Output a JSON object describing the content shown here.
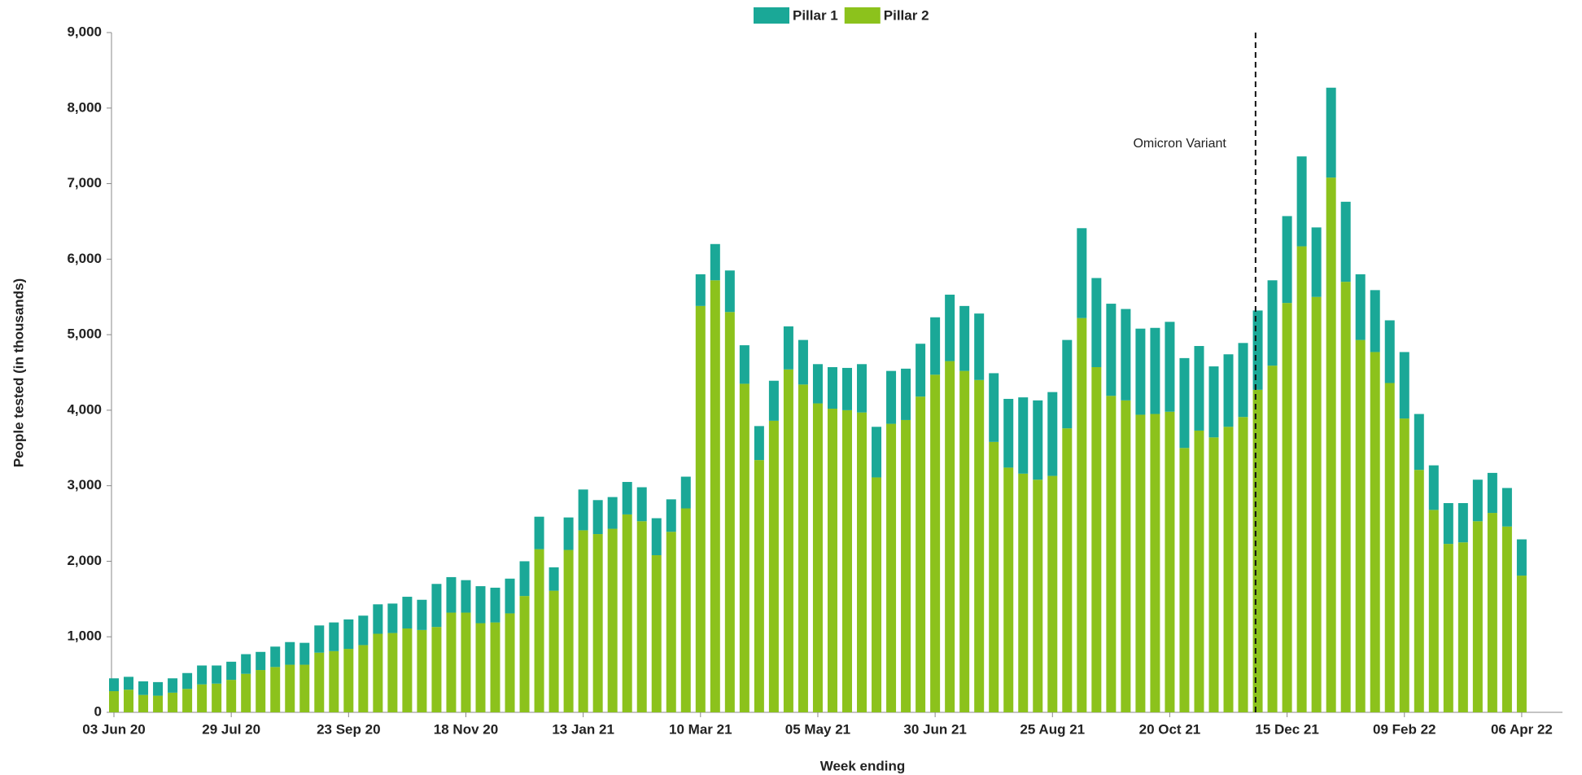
{
  "chart_data": {
    "type": "stacked_bar",
    "x_label": "Week ending",
    "y_label": "People tested (in thousands)",
    "annotation": "Omicron Variant",
    "legend": "top",
    "categories": [
      "03 Jun 20",
      null,
      null,
      null,
      null,
      null,
      null,
      null,
      "29 Jul 20",
      null,
      null,
      null,
      null,
      null,
      null,
      null,
      "23 Sep 20",
      null,
      null,
      null,
      null,
      null,
      null,
      null,
      "18 Nov 20",
      null,
      null,
      null,
      null,
      null,
      null,
      null,
      "13 Jan 21",
      null,
      null,
      null,
      null,
      null,
      null,
      null,
      "10 Mar 21",
      null,
      null,
      null,
      null,
      null,
      null,
      null,
      "05 May 21",
      null,
      null,
      null,
      null,
      null,
      null,
      null,
      "30 Jun 21",
      null,
      null,
      null,
      null,
      null,
      null,
      null,
      "25 Aug 21",
      null,
      null,
      null,
      null,
      null,
      null,
      null,
      "20 Oct 21",
      null,
      null,
      null,
      null,
      null,
      null,
      null,
      "15 Dec 21",
      null,
      null,
      null,
      null,
      null,
      null,
      null,
      "09 Feb 22",
      null,
      null,
      null,
      null,
      null,
      null,
      null,
      "06 Apr 22"
    ],
    "series": [
      {
        "name": "Pillar 1",
        "color": "#1aa897",
        "values": [
          170,
          170,
          180,
          180,
          190,
          210,
          250,
          240,
          240,
          260,
          240,
          270,
          300,
          290,
          360,
          380,
          390,
          390,
          390,
          390,
          420,
          400,
          570,
          470,
          430,
          490,
          460,
          460,
          460,
          430,
          310,
          430,
          540,
          450,
          420,
          430,
          450,
          490,
          430,
          420,
          420,
          480,
          550,
          510,
          450,
          530,
          570,
          590,
          520,
          550,
          560,
          640,
          670,
          700,
          680,
          700,
          760,
          880,
          860,
          880,
          910,
          910,
          1010,
          1050,
          1110,
          1170,
          1190,
          1180,
          1220,
          1210,
          1140,
          1140,
          1190,
          1190,
          1120,
          940,
          960,
          980,
          1050,
          1130,
          1150,
          1190,
          920,
          1190,
          1060,
          870,
          820,
          830,
          880,
          740,
          590,
          540,
          520,
          550,
          530,
          510,
          480
        ]
      },
      {
        "name": "Pillar 2",
        "color": "#8cc21c",
        "values": [
          280,
          300,
          230,
          220,
          260,
          310,
          370,
          380,
          430,
          510,
          560,
          600,
          630,
          630,
          790,
          810,
          840,
          890,
          1040,
          1050,
          1110,
          1090,
          1130,
          1320,
          1320,
          1180,
          1190,
          1310,
          1540,
          2160,
          1610,
          2150,
          2410,
          2360,
          2430,
          2620,
          2530,
          2080,
          2390,
          2700,
          5380,
          5720,
          5300,
          4350,
          3340,
          3860,
          4540,
          4340,
          4090,
          4020,
          4000,
          3970,
          3110,
          3820,
          3870,
          4180,
          4470,
          4650,
          4520,
          4400,
          3580,
          3240,
          3160,
          3080,
          3130,
          3760,
          5220,
          4570,
          4190,
          4130,
          3940,
          3950,
          3980,
          3500,
          3730,
          3640,
          3780,
          3910,
          4270,
          4590,
          5420,
          6170,
          5500,
          7080,
          5700,
          4930,
          4770,
          4360,
          3890,
          3210,
          2680,
          2230,
          2250,
          2530,
          2640,
          2460,
          1810
        ]
      }
    ],
    "ylim": [
      0,
      9000
    ],
    "yticks": [
      0,
      {
        "value": 1000,
        "label": "1,000"
      },
      {
        "value": 2000,
        "label": "2,000"
      },
      {
        "value": 3000,
        "label": "3,000"
      },
      {
        "value": 4000,
        "label": "4,000"
      },
      {
        "value": 5000,
        "label": "5,000"
      },
      {
        "value": 6000,
        "label": "6,000"
      },
      {
        "value": 7000,
        "label": "7,000"
      },
      {
        "value": 8000,
        "label": "8,000"
      },
      {
        "value": 9000,
        "label": "9,000"
      }
    ]
  }
}
